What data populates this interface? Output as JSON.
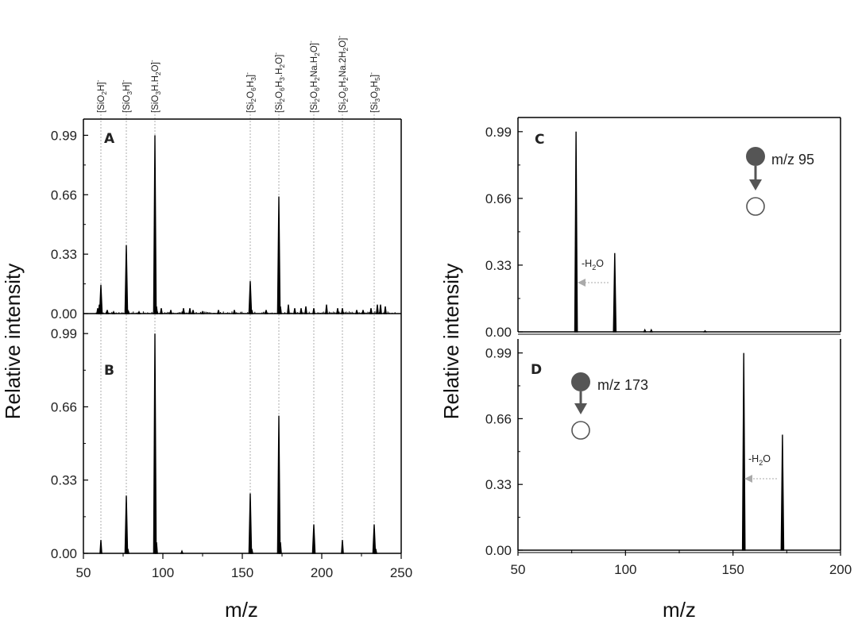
{
  "chart_data": [
    {
      "panel": "A",
      "type": "line",
      "xlabel": "m/z",
      "ylabel": "Relative intensity",
      "xlim": [
        50,
        250
      ],
      "ylim": [
        0,
        1.08
      ],
      "xticks": [
        "50",
        "100",
        "150",
        "200",
        "250"
      ],
      "yticks": [
        "0.00",
        "0.33",
        "0.66",
        "0.99"
      ],
      "peaks": [
        {
          "x": 59,
          "y": 0.03
        },
        {
          "x": 60,
          "y": 0.05
        },
        {
          "x": 61,
          "y": 0.16
        },
        {
          "x": 65,
          "y": 0.02
        },
        {
          "x": 69,
          "y": 0.01
        },
        {
          "x": 77,
          "y": 0.38
        },
        {
          "x": 78,
          "y": 0.02
        },
        {
          "x": 85,
          "y": 0.01
        },
        {
          "x": 95,
          "y": 0.99
        },
        {
          "x": 96,
          "y": 0.04
        },
        {
          "x": 99,
          "y": 0.03
        },
        {
          "x": 105,
          "y": 0.02
        },
        {
          "x": 113,
          "y": 0.03
        },
        {
          "x": 117,
          "y": 0.03
        },
        {
          "x": 119,
          "y": 0.02
        },
        {
          "x": 125,
          "y": 0.01
        },
        {
          "x": 135,
          "y": 0.02
        },
        {
          "x": 145,
          "y": 0.02
        },
        {
          "x": 155,
          "y": 0.18
        },
        {
          "x": 156,
          "y": 0.02
        },
        {
          "x": 165,
          "y": 0.02
        },
        {
          "x": 173,
          "y": 0.65
        },
        {
          "x": 174,
          "y": 0.04
        },
        {
          "x": 179,
          "y": 0.05
        },
        {
          "x": 183,
          "y": 0.03
        },
        {
          "x": 187,
          "y": 0.03
        },
        {
          "x": 190,
          "y": 0.04
        },
        {
          "x": 195,
          "y": 0.03
        },
        {
          "x": 203,
          "y": 0.05
        },
        {
          "x": 210,
          "y": 0.03
        },
        {
          "x": 213,
          "y": 0.03
        },
        {
          "x": 222,
          "y": 0.02
        },
        {
          "x": 226,
          "y": 0.02
        },
        {
          "x": 231,
          "y": 0.03
        },
        {
          "x": 235,
          "y": 0.05
        },
        {
          "x": 237,
          "y": 0.05
        },
        {
          "x": 240,
          "y": 0.04
        }
      ],
      "noise_level": 0.012
    },
    {
      "panel": "B",
      "type": "line",
      "xlabel": "m/z",
      "ylabel": "Relative intensity",
      "xlim": [
        50,
        250
      ],
      "ylim": [
        0,
        1.08
      ],
      "xticks": [
        "50",
        "100",
        "150",
        "200",
        "250"
      ],
      "yticks": [
        "0.00",
        "0.33",
        "0.66",
        "0.99"
      ],
      "peaks": [
        {
          "x": 61,
          "y": 0.06
        },
        {
          "x": 77,
          "y": 0.26
        },
        {
          "x": 78,
          "y": 0.02
        },
        {
          "x": 95,
          "y": 0.99
        },
        {
          "x": 96,
          "y": 0.05
        },
        {
          "x": 112,
          "y": 0.01
        },
        {
          "x": 155,
          "y": 0.27
        },
        {
          "x": 156,
          "y": 0.02
        },
        {
          "x": 173,
          "y": 0.62
        },
        {
          "x": 174,
          "y": 0.05
        },
        {
          "x": 195,
          "y": 0.13
        },
        {
          "x": 213,
          "y": 0.06
        },
        {
          "x": 233,
          "y": 0.13
        },
        {
          "x": 234,
          "y": 0.02
        }
      ],
      "noise_level": 0.0
    },
    {
      "panel": "C",
      "type": "line",
      "xlabel": "m/z",
      "ylabel": "Relative intensity",
      "xlim": [
        50,
        200
      ],
      "ylim": [
        0,
        1.06
      ],
      "xticks": [
        "50",
        "100",
        "150",
        "200"
      ],
      "yticks": [
        "0.00",
        "0.33",
        "0.66",
        "0.99"
      ],
      "peaks": [
        {
          "x": 77,
          "y": 0.99
        },
        {
          "x": 95,
          "y": 0.39
        },
        {
          "x": 109,
          "y": 0.01
        },
        {
          "x": 112,
          "y": 0.01
        },
        {
          "x": 137,
          "y": 0.005
        }
      ],
      "annotation": "-H2O",
      "precursor_label": "m/z 95"
    },
    {
      "panel": "D",
      "type": "line",
      "xlabel": "m/z",
      "ylabel": "Relative intensity",
      "xlim": [
        50,
        200
      ],
      "ylim": [
        0,
        1.06
      ],
      "xticks": [
        "50",
        "100",
        "150",
        "200"
      ],
      "yticks": [
        "0.00",
        "0.33",
        "0.66",
        "0.99"
      ],
      "peaks": [
        {
          "x": 155,
          "y": 0.99
        },
        {
          "x": 173,
          "y": 0.58
        }
      ],
      "annotation": "-H2O",
      "precursor_label": "m/z 173"
    }
  ],
  "ion_labels": [
    {
      "x": 61,
      "main": "[SiO",
      "sub": "2",
      "tail": "H]",
      "sup": "-"
    },
    {
      "x": 77,
      "main": "[SiO",
      "sub": "3",
      "tail": "H]",
      "sup": "-"
    },
    {
      "x": 95,
      "main": "[SiO",
      "sub": "3",
      "tail": "H.H",
      "sub2": "2",
      "tail2": "O]",
      "sup": "-"
    },
    {
      "x": 155,
      "main": "[Si",
      "sub": "2",
      "tail": "O",
      "sub2": "6",
      "tail2": "H",
      "sub3": "3",
      "tail3": "]",
      "sup": "-"
    },
    {
      "x": 173,
      "main": "[Si",
      "sub": "2",
      "tail": "O",
      "sub2": "6",
      "tail2": "H",
      "sub3": "3",
      "tail3": ".H",
      "sub4": "2",
      "tail4": "O]",
      "sup": "-"
    },
    {
      "x": 195,
      "main": "[Si",
      "sub": "2",
      "tail": "O",
      "sub2": "6",
      "tail2": "H",
      "sub3": "2",
      "tail3": "Na.H",
      "sub4": "2",
      "tail4": "O]",
      "sup": "-"
    },
    {
      "x": 213,
      "main": "[Si",
      "sub": "2",
      "tail": "O",
      "sub2": "6",
      "tail2": "H",
      "sub3": "2",
      "tail3": "Na.2H",
      "sub4": "2",
      "tail4": "O]",
      "sup": "-"
    },
    {
      "x": 233,
      "main": "[Si",
      "sub": "3",
      "tail": "O",
      "sub2": "9",
      "tail2": "H",
      "sub3": "5",
      "tail3": "]",
      "sup": "-"
    }
  ],
  "colors": {
    "trace": "#000000",
    "guide_line": "#999999",
    "arrow_gray": "#aaaaaa",
    "precursor_fill": "#555555"
  }
}
